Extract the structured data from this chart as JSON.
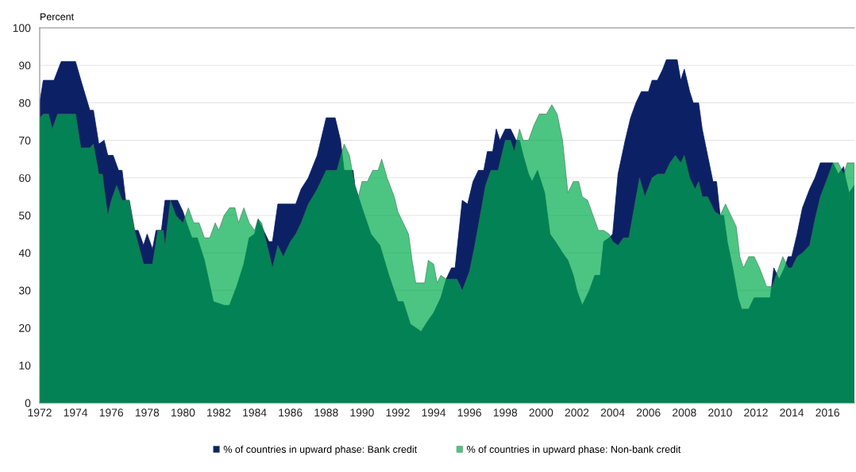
{
  "chart_data": {
    "type": "area",
    "ylabel": "Percent",
    "xlim": [
      1972,
      2017.5
    ],
    "xticks": [
      1972,
      1974,
      1976,
      1978,
      1980,
      1982,
      1984,
      1986,
      1988,
      1990,
      1992,
      1994,
      1996,
      1998,
      2000,
      2002,
      2004,
      2006,
      2008,
      2010,
      2012,
      2014,
      2016
    ],
    "ylim": [
      0,
      100
    ],
    "yticks": [
      0,
      10,
      20,
      30,
      40,
      50,
      60,
      70,
      80,
      90,
      100
    ],
    "grid": "y",
    "legend": "bottom",
    "series": [
      {
        "name": "% of countries in upward phase: Bank credit",
        "color": "#0c2165",
        "x": [
          1972.0,
          1972.2,
          1972.8,
          1973.2,
          1974.0,
          1974.3,
          1974.8,
          1975.0,
          1975.3,
          1975.6,
          1975.8,
          1976.1,
          1976.4,
          1976.6,
          1976.8,
          1977.0,
          1977.3,
          1977.5,
          1977.8,
          1978.0,
          1978.3,
          1978.5,
          1978.8,
          1979.0,
          1979.7,
          1980.0,
          1980.2,
          1980.5,
          1980.8,
          1981.2,
          1981.7,
          1982.0,
          1982.3,
          1982.6,
          1983.0,
          1983.4,
          1983.7,
          1984.0,
          1984.2,
          1984.5,
          1984.8,
          1985.0,
          1985.3,
          1986.0,
          1986.3,
          1986.6,
          1987.0,
          1987.5,
          1988.0,
          1988.5,
          1988.8,
          1989.0,
          1989.5,
          1989.6,
          1990.0,
          1990.5,
          1991.0,
          1991.5,
          1992.0,
          1992.3,
          1992.7,
          1993.0,
          1993.3,
          1993.7,
          1994.0,
          1994.4,
          1994.7,
          1995.0,
          1995.2,
          1995.6,
          1995.9,
          1996.2,
          1996.5,
          1996.8,
          1997.0,
          1997.3,
          1997.5,
          1997.7,
          1998.0,
          1998.3,
          1998.6,
          1998.8,
          1999.0,
          1999.3,
          1999.5,
          1999.8,
          2000.2,
          2000.5,
          2000.8,
          2001.2,
          2001.5,
          2001.8,
          2002.0,
          2002.3,
          2002.7,
          2003.0,
          2003.3,
          2003.5,
          2003.8,
          2004.0,
          2004.3,
          2004.7,
          2005.0,
          2005.3,
          2005.6,
          2006.0,
          2006.2,
          2006.5,
          2006.8,
          2007.0,
          2007.6,
          2007.8,
          2008.0,
          2008.3,
          2008.5,
          2008.8,
          2009.0,
          2009.3,
          2009.6,
          2009.8,
          2010.0,
          2010.2,
          2010.4,
          2010.7,
          2011.0,
          2011.2,
          2011.6,
          2011.9,
          2012.5,
          2012.8,
          2013.0,
          2013.3,
          2013.6,
          2013.8,
          2014.0,
          2014.3,
          2014.6,
          2015.0,
          2015.3,
          2015.6,
          2016.0,
          2016.3,
          2016.6,
          2016.9,
          2017.0,
          2017.2,
          2017.5
        ],
        "values": [
          80,
          86,
          86,
          91,
          91,
          86,
          78,
          78,
          69,
          70,
          66,
          66,
          62,
          62,
          54,
          54,
          46,
          46,
          42,
          45,
          41,
          46,
          46,
          54,
          54,
          51,
          48,
          44,
          44,
          38,
          27,
          26.5,
          26,
          26,
          31,
          37,
          44,
          45,
          49,
          46,
          43,
          43,
          53,
          53,
          53,
          57,
          60,
          66,
          76,
          76,
          70,
          62,
          62,
          58,
          52,
          45,
          42,
          34,
          27,
          27,
          21,
          20,
          19,
          22,
          24,
          28,
          33,
          36,
          36,
          54,
          53,
          59,
          62,
          62,
          67,
          67,
          73,
          70,
          73,
          73,
          70,
          70,
          66,
          61,
          59,
          62,
          56,
          45,
          43,
          40,
          38,
          34,
          30,
          26,
          30,
          34,
          34,
          43,
          44,
          45,
          61,
          70,
          76,
          80,
          83,
          83,
          86,
          86,
          89,
          91.5,
          91.5,
          86,
          89,
          83,
          80,
          80,
          73,
          66,
          59,
          59,
          50,
          50,
          43,
          36,
          28,
          25,
          25,
          28,
          28,
          28,
          36,
          33,
          36,
          39,
          39,
          45,
          52,
          57,
          60,
          64,
          64,
          64,
          61,
          63,
          60,
          56,
          58
        ]
      },
      {
        "name": "% of countries in upward phase: Non-bank credit",
        "color": "#00ac4e",
        "x": [
          1972.0,
          1972.2,
          1972.5,
          1972.7,
          1973.0,
          1974.0,
          1974.3,
          1974.8,
          1975.0,
          1975.3,
          1975.5,
          1975.8,
          1976.0,
          1976.3,
          1976.6,
          1977.0,
          1977.3,
          1977.8,
          1978.3,
          1978.6,
          1978.9,
          1979.0,
          1979.3,
          1979.6,
          1980.0,
          1980.3,
          1980.6,
          1980.9,
          1981.2,
          1981.5,
          1981.8,
          1982.0,
          1982.3,
          1982.6,
          1982.9,
          1983.1,
          1983.4,
          1983.7,
          1984.0,
          1984.2,
          1984.4,
          1984.6,
          1985.0,
          1985.3,
          1985.6,
          1986.0,
          1986.3,
          1986.6,
          1987.0,
          1987.5,
          1987.8,
          1988.0,
          1988.6,
          1989.0,
          1989.3,
          1989.6,
          1989.8,
          1990.0,
          1990.3,
          1990.6,
          1990.9,
          1991.1,
          1991.4,
          1991.8,
          1992.0,
          1992.3,
          1992.6,
          1992.8,
          1993.0,
          1993.5,
          1993.7,
          1994.0,
          1994.2,
          1994.4,
          1994.7,
          1995.0,
          1995.3,
          1995.6,
          1996.0,
          1996.3,
          1996.6,
          1996.9,
          1997.2,
          1997.6,
          1998.0,
          1998.3,
          1998.5,
          1998.8,
          1999.0,
          1999.3,
          1999.6,
          1999.9,
          2000.3,
          2000.6,
          2000.9,
          2001.2,
          2001.5,
          2001.8,
          2002.1,
          2002.3,
          2002.6,
          2002.9,
          2003.2,
          2003.5,
          2003.8,
          2004.0,
          2004.3,
          2004.6,
          2004.9,
          2005.2,
          2005.5,
          2005.8,
          2006.2,
          2006.5,
          2006.9,
          2007.2,
          2007.5,
          2007.8,
          2008.0,
          2008.3,
          2008.6,
          2008.8,
          2009.0,
          2009.3,
          2009.7,
          2010.0,
          2010.3,
          2010.6,
          2010.9,
          2011.1,
          2011.3,
          2011.6,
          2011.9,
          2012.2,
          2012.6,
          2012.9,
          2013.2,
          2013.5,
          2013.8,
          2014.0,
          2014.3,
          2014.6,
          2015.0,
          2015.3,
          2015.6,
          2016.0,
          2016.3,
          2016.6,
          2016.9,
          2017.1,
          2017.5
        ],
        "values": [
          76,
          77,
          77,
          73,
          77,
          77,
          68,
          68,
          69,
          61,
          61,
          50,
          54,
          58,
          54,
          54,
          46,
          37,
          37,
          46,
          46,
          42,
          54,
          50,
          48,
          52,
          48,
          48,
          44,
          44,
          48,
          46,
          50,
          52,
          52,
          48,
          52,
          48,
          46,
          49,
          48,
          44,
          36,
          42,
          39,
          43,
          45,
          48,
          53,
          57,
          60,
          62,
          62,
          69,
          66,
          58,
          55,
          59,
          59,
          62,
          62,
          65,
          60,
          55,
          51,
          48,
          45,
          38,
          32,
          32,
          38,
          37,
          32,
          34,
          33,
          33,
          33,
          30,
          35,
          42,
          50,
          58,
          62,
          62,
          70,
          70,
          67,
          73,
          70,
          70,
          74,
          77,
          77,
          79.5,
          77,
          70,
          56,
          59,
          59,
          55,
          54,
          50,
          46,
          46,
          45,
          43,
          42,
          44,
          44,
          52,
          60,
          55,
          60,
          61,
          61,
          64,
          66,
          64,
          66,
          60,
          57,
          59,
          55,
          55,
          51,
          50,
          53,
          50,
          47,
          39,
          36,
          39,
          39,
          36,
          31,
          31,
          35,
          39,
          36,
          36,
          39,
          40,
          42,
          49,
          55,
          60,
          64,
          64,
          61,
          64,
          64
        ]
      }
    ]
  }
}
